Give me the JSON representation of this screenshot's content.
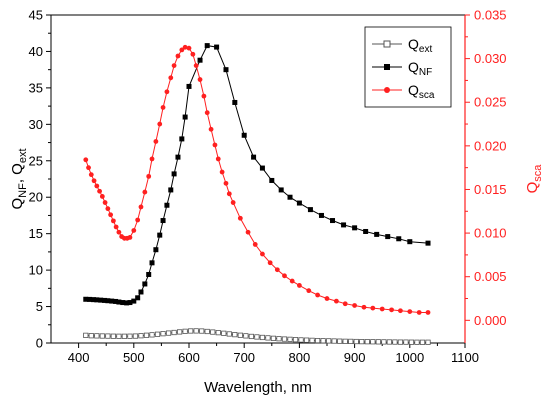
{
  "chart_data": {
    "type": "line",
    "xlabel": "Wavelength, nm",
    "ylabel_left": {
      "main": "Q",
      "sub1": "NF",
      "sep": ", Q",
      "sub2": "ext"
    },
    "ylabel_right": {
      "main": "Q",
      "sub": "sca"
    },
    "xlim": [
      350,
      1100
    ],
    "ylim_left": [
      0,
      45
    ],
    "ylim_right": [
      -0.0026,
      0.035
    ],
    "x_ticks": [
      400,
      500,
      600,
      700,
      800,
      900,
      1000,
      1100
    ],
    "y_ticks_left": [
      0,
      5,
      10,
      15,
      20,
      25,
      30,
      35,
      40,
      45
    ],
    "y_ticks_right": [
      "0.000",
      "0.005",
      "0.010",
      "0.015",
      "0.020",
      "0.025",
      "0.030",
      "0.035"
    ],
    "grid": false,
    "legend_position": "top-right",
    "colors": {
      "black": "#000000",
      "red": "#ff2020",
      "gray": "#555555"
    },
    "series": [
      {
        "name": "ext",
        "label_main": "Q",
        "label_sub": "ext",
        "axis": "left",
        "marker": "open-square",
        "color": "#555555",
        "x": [
          413,
          423,
          433,
          443,
          453,
          463,
          473,
          483,
          493,
          503,
          513,
          523,
          533,
          543,
          553,
          563,
          573,
          583,
          593,
          603,
          613,
          623,
          633,
          643,
          653,
          663,
          673,
          683,
          693,
          703,
          713,
          723,
          733,
          743,
          753,
          763,
          773,
          783,
          793,
          803,
          813,
          823,
          833,
          843,
          853,
          863,
          873,
          883,
          893,
          903,
          913,
          923,
          933,
          943,
          953,
          963,
          973,
          983,
          993,
          1003,
          1013,
          1023,
          1033
        ],
        "y": [
          1.05,
          1.0,
          0.98,
          0.96,
          0.95,
          0.93,
          0.92,
          0.92,
          0.93,
          0.95,
          1.0,
          1.06,
          1.12,
          1.2,
          1.28,
          1.36,
          1.44,
          1.52,
          1.6,
          1.65,
          1.66,
          1.64,
          1.58,
          1.5,
          1.42,
          1.33,
          1.24,
          1.15,
          1.06,
          0.98,
          0.9,
          0.83,
          0.76,
          0.7,
          0.64,
          0.59,
          0.54,
          0.5,
          0.46,
          0.42,
          0.39,
          0.36,
          0.33,
          0.31,
          0.29,
          0.27,
          0.25,
          0.23,
          0.22,
          0.2,
          0.19,
          0.18,
          0.17,
          0.16,
          0.15,
          0.14,
          0.13,
          0.12,
          0.12,
          0.11,
          0.1,
          0.1,
          0.1
        ]
      },
      {
        "name": "NF",
        "label_main": "Q",
        "label_sub": "NF",
        "axis": "left",
        "marker": "filled-square",
        "color": "#000000",
        "x": [
          413,
          420,
          427,
          433,
          440,
          447,
          453,
          460,
          467,
          473,
          480,
          487,
          493,
          500,
          507,
          513,
          520,
          527,
          533,
          540,
          547,
          553,
          560,
          567,
          573,
          580,
          587,
          593,
          600,
          620,
          633,
          650,
          667,
          683,
          700,
          717,
          733,
          750,
          767,
          783,
          800,
          820,
          840,
          860,
          880,
          900,
          920,
          940,
          960,
          980,
          1000,
          1033
        ],
        "y": [
          6.0,
          5.98,
          5.95,
          5.92,
          5.88,
          5.84,
          5.8,
          5.75,
          5.7,
          5.62,
          5.55,
          5.5,
          5.55,
          5.75,
          6.2,
          7.0,
          8.1,
          9.4,
          11.0,
          12.8,
          14.8,
          16.8,
          18.9,
          21.0,
          23.2,
          25.5,
          28.0,
          31.0,
          35.2,
          38.8,
          40.8,
          40.6,
          37.5,
          33.0,
          28.5,
          25.5,
          24.0,
          22.3,
          21.0,
          20.0,
          19.2,
          18.3,
          17.5,
          16.8,
          16.2,
          15.8,
          15.3,
          14.9,
          14.6,
          14.3,
          13.9,
          13.7
        ]
      },
      {
        "name": "sca",
        "label_main": "Q",
        "label_sub": "sca",
        "axis": "right",
        "marker": "filled-circle",
        "color": "#ff2020",
        "x": [
          413,
          418,
          423,
          428,
          433,
          438,
          443,
          448,
          453,
          458,
          463,
          468,
          473,
          478,
          483,
          488,
          493,
          500,
          507,
          513,
          520,
          527,
          533,
          540,
          547,
          553,
          560,
          567,
          573,
          580,
          587,
          593,
          600,
          607,
          613,
          620,
          627,
          633,
          640,
          647,
          653,
          660,
          667,
          673,
          680,
          693,
          707,
          720,
          733,
          747,
          760,
          773,
          787,
          800,
          817,
          833,
          850,
          867,
          883,
          900,
          917,
          933,
          950,
          967,
          983,
          1000,
          1017,
          1033
        ],
        "y": [
          0.0184,
          0.0175,
          0.0167,
          0.016,
          0.0154,
          0.0148,
          0.0142,
          0.0135,
          0.0128,
          0.0121,
          0.0114,
          0.0107,
          0.0101,
          0.0096,
          0.0094,
          0.0094,
          0.0095,
          0.0103,
          0.0115,
          0.013,
          0.0147,
          0.0165,
          0.0185,
          0.0205,
          0.0225,
          0.0244,
          0.0262,
          0.0278,
          0.0292,
          0.0303,
          0.031,
          0.0313,
          0.0312,
          0.0305,
          0.0292,
          0.0276,
          0.0257,
          0.0238,
          0.0219,
          0.0201,
          0.0185,
          0.017,
          0.0157,
          0.0145,
          0.0135,
          0.0117,
          0.0101,
          0.0087,
          0.0076,
          0.0066,
          0.0058,
          0.0051,
          0.0045,
          0.004,
          0.0034,
          0.0029,
          0.0025,
          0.0022,
          0.0019,
          0.0017,
          0.0015,
          0.0014,
          0.0013,
          0.0012,
          0.0011,
          0.001,
          0.0009,
          0.0009
        ]
      }
    ]
  }
}
